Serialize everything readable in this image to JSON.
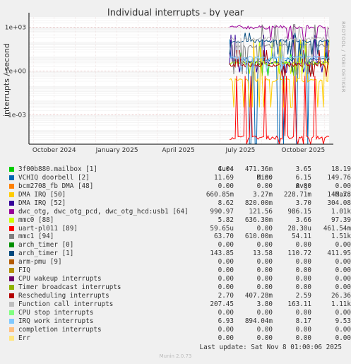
{
  "title": "Individual interrupts - by year",
  "side_label": "RRDTOOL / TOBI OETIKER",
  "ylabel": "interrupts / second",
  "chart_data": {
    "type": "line",
    "title": "Individual interrupts - by year",
    "ylabel": "interrupts / second",
    "yscale": "log",
    "ylim": [
      1e-05,
      5000
    ],
    "yticks": [
      {
        "value": 1000,
        "label": "1e+03"
      },
      {
        "value": 1,
        "label": "1e+00"
      },
      {
        "value": 0.001,
        "label": "1e-03"
      }
    ],
    "xlim": [
      "2024-08-25",
      "2025-11-08"
    ],
    "xticks": [
      {
        "date": "2024-10-01",
        "label": "October 2024"
      },
      {
        "date": "2025-01-01",
        "label": "January 2025"
      },
      {
        "date": "2025-04-01",
        "label": "April 2025"
      },
      {
        "date": "2025-07-01",
        "label": "July 2025"
      },
      {
        "date": "2025-10-01",
        "label": "October 2025"
      }
    ],
    "data_start": "2025-06-15",
    "grid": true
  },
  "legend": {
    "headers": {
      "cur": "Cur:",
      "min": "Min:",
      "avg": "Avg:",
      "max": "Max:"
    },
    "rows": [
      {
        "name": "3f00b880.mailbox [1]",
        "color": "#00cc00",
        "cur": "4.04",
        "min": "471.36m",
        "avg": "3.65",
        "max": "18.19"
      },
      {
        "name": "VCHIQ doorbell [2]",
        "color": "#0066b3",
        "cur": "11.69",
        "min": "0.00",
        "avg": "6.15",
        "max": "149.76"
      },
      {
        "name": "bcm2708_fb DMA [48]",
        "color": "#ff8000",
        "cur": "0.00",
        "min": "0.00",
        "avg": "0.00",
        "max": "0.00"
      },
      {
        "name": "DMA IRQ [50]",
        "color": "#ffcc00",
        "cur": "660.85m",
        "min": "3.27m",
        "avg": "228.71m",
        "max": "140.78"
      },
      {
        "name": "DMA IRQ [52]",
        "color": "#330099",
        "cur": "8.62",
        "min": "820.00m",
        "avg": "3.70",
        "max": "304.08"
      },
      {
        "name": "dwc_otg, dwc_otg_pcd, dwc_otg_hcd:usb1 [64]",
        "color": "#990099",
        "cur": "990.97",
        "min": "121.56",
        "avg": "986.15",
        "max": "1.01k"
      },
      {
        "name": "mmc0 [88]",
        "color": "#ccff00",
        "cur": "5.82",
        "min": "636.30m",
        "avg": "3.66",
        "max": "97.39"
      },
      {
        "name": "uart-pl011 [89]",
        "color": "#ff0000",
        "cur": "59.65u",
        "min": "0.00",
        "avg": "28.30u",
        "max": "461.54m"
      },
      {
        "name": "mmc1 [94]",
        "color": "#808080",
        "cur": "63.70",
        "min": "610.00m",
        "avg": "54.11",
        "max": "1.51k"
      },
      {
        "name": "arch_timer [0]",
        "color": "#008f00",
        "cur": "0.00",
        "min": "0.00",
        "avg": "0.00",
        "max": "0.00"
      },
      {
        "name": "arch_timer [1]",
        "color": "#00487d",
        "cur": "143.85",
        "min": "13.58",
        "avg": "110.72",
        "max": "411.95"
      },
      {
        "name": "arm-pmu [9]",
        "color": "#b35a00",
        "cur": "0.00",
        "min": "0.00",
        "avg": "0.00",
        "max": "0.00"
      },
      {
        "name": "FIQ",
        "color": "#b38f00",
        "cur": "0.00",
        "min": "0.00",
        "avg": "0.00",
        "max": "0.00"
      },
      {
        "name": "CPU wakeup interrupts",
        "color": "#6b006b",
        "cur": "0.00",
        "min": "0.00",
        "avg": "0.00",
        "max": "0.00"
      },
      {
        "name": "Timer broadcast interrupts",
        "color": "#8fb300",
        "cur": "0.00",
        "min": "0.00",
        "avg": "0.00",
        "max": "0.00"
      },
      {
        "name": "Rescheduling interrupts",
        "color": "#b30000",
        "cur": "2.70",
        "min": "407.28m",
        "avg": "2.59",
        "max": "26.36"
      },
      {
        "name": "Function call interrupts",
        "color": "#bebebe",
        "cur": "207.45",
        "min": "3.80",
        "avg": "163.11",
        "max": "1.11k"
      },
      {
        "name": "CPU stop interrupts",
        "color": "#80ff80",
        "cur": "0.00",
        "min": "0.00",
        "avg": "0.00",
        "max": "0.00"
      },
      {
        "name": "IRQ work interrupts",
        "color": "#80c9ff",
        "cur": "6.93",
        "min": "894.04m",
        "avg": "8.17",
        "max": "9.53"
      },
      {
        "name": "completion interrupts",
        "color": "#ffc080",
        "cur": "0.00",
        "min": "0.00",
        "avg": "0.00",
        "max": "0.00"
      },
      {
        "name": "Err",
        "color": "#ffe680",
        "cur": "0.00",
        "min": "0.00",
        "avg": "0.00",
        "max": "0.00"
      }
    ]
  },
  "last_update": "Last update: Sat Nov  8 01:00:06 2025",
  "munin": "Munin 2.0.73"
}
